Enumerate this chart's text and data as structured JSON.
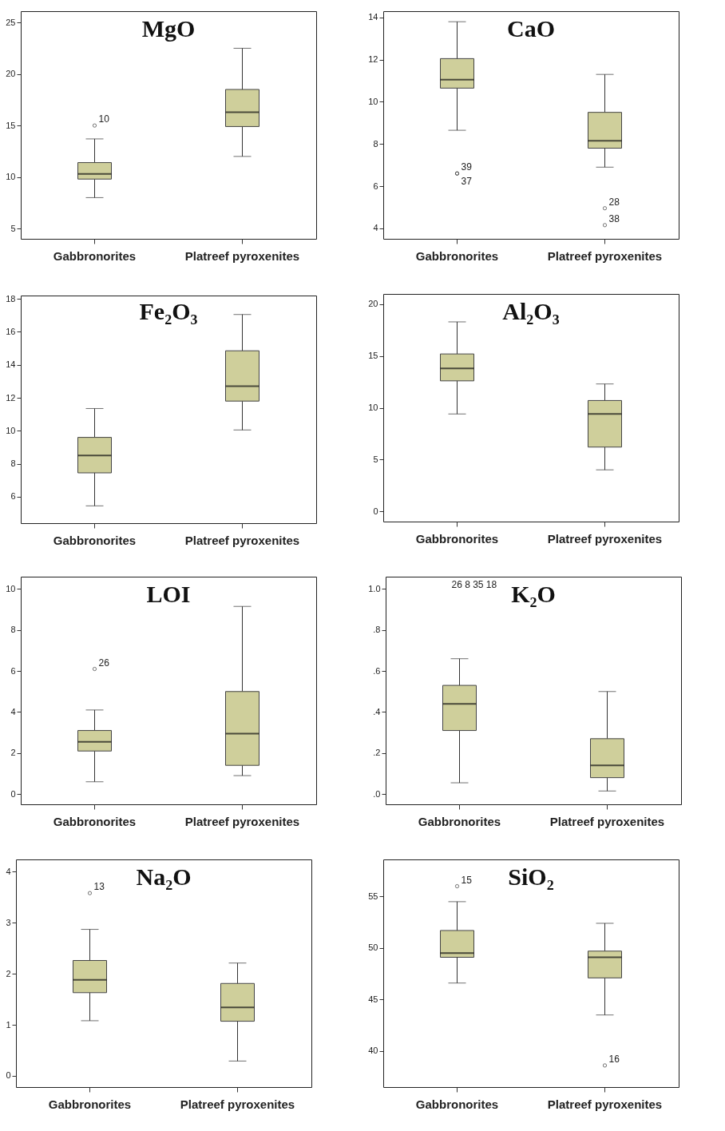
{
  "chart_data": [
    {
      "type": "box",
      "title": "MgO",
      "categories": [
        "Gabbronorites",
        "Platreef pyroxenites"
      ],
      "ylim": [
        4,
        26.1
      ],
      "yticks": [
        5,
        10,
        15,
        20,
        25
      ],
      "series": [
        {
          "color": "#cfcf9b",
          "boxes": [
            {
              "low": 8.0,
              "q1": 9.8,
              "median": 10.3,
              "q3": 11.4,
              "high": 13.7,
              "outliers": [
                15.0
              ]
            },
            {
              "low": 12.0,
              "q1": 14.9,
              "median": 16.3,
              "q3": 18.5,
              "high": 22.5
            }
          ]
        }
      ],
      "annotations": [
        "10"
      ]
    },
    {
      "type": "box",
      "title": "CaO",
      "categories": [
        "Gabbronorites",
        "Platreef pyroxenites"
      ],
      "ylim": [
        3.5,
        14.3
      ],
      "yticks": [
        4,
        6,
        8,
        10,
        12,
        14
      ],
      "series": [
        {
          "color": "#cfcf9b",
          "boxes": [
            {
              "low": 8.65,
              "q1": 10.65,
              "median": 11.05,
              "q3": 12.05,
              "high": 13.8,
              "outliers": [
                6.6,
                6.6
              ]
            },
            {
              "low": 6.9,
              "q1": 7.8,
              "median": 8.15,
              "q3": 9.5,
              "high": 11.3,
              "outliers": [
                4.95,
                4.15
              ]
            }
          ]
        }
      ],
      "annotations": [
        "39",
        "37",
        "28",
        "38"
      ]
    },
    {
      "type": "box",
      "title": "Fe₂O₃",
      "categories": [
        "Gabbronorites",
        "Platreef pyroxenites"
      ],
      "ylim": [
        4.4,
        18.2
      ],
      "yticks": [
        6,
        8,
        10,
        12,
        14,
        16,
        18
      ],
      "series": [
        {
          "color": "#cfcf9b",
          "boxes": [
            {
              "low": 5.45,
              "q1": 7.45,
              "median": 8.5,
              "q3": 9.6,
              "high": 11.35
            },
            {
              "low": 10.05,
              "q1": 11.8,
              "median": 12.7,
              "q3": 14.85,
              "high": 17.05
            }
          ]
        }
      ]
    },
    {
      "type": "box",
      "title": "Al₂O₃",
      "categories": [
        "Gabbronorites",
        "Platreef pyroxenites"
      ],
      "ylim": [
        -1,
        21
      ],
      "yticks": [
        0,
        5,
        10,
        15,
        20
      ],
      "series": [
        {
          "color": "#cfcf9b",
          "boxes": [
            {
              "low": 9.4,
              "q1": 12.6,
              "median": 13.8,
              "q3": 15.2,
              "high": 18.3
            },
            {
              "low": 4.0,
              "q1": 6.2,
              "median": 9.4,
              "q3": 10.7,
              "high": 12.3
            }
          ]
        }
      ]
    },
    {
      "type": "box",
      "title": "LOI",
      "categories": [
        "Gabbronorites",
        "Platreef pyroxenites"
      ],
      "ylim": [
        -0.5,
        10.6
      ],
      "yticks": [
        0,
        2,
        4,
        6,
        8,
        10
      ],
      "series": [
        {
          "color": "#cfcf9b",
          "boxes": [
            {
              "low": 0.6,
              "q1": 2.1,
              "median": 2.55,
              "q3": 3.1,
              "high": 4.1,
              "outliers": [
                6.1
              ]
            },
            {
              "low": 0.9,
              "q1": 1.4,
              "median": 2.95,
              "q3": 5.0,
              "high": 9.15
            }
          ]
        }
      ],
      "annotations": [
        "26"
      ]
    },
    {
      "type": "box",
      "title": "K₂O",
      "categories": [
        "Gabbronorites",
        "Platreef pyroxenites"
      ],
      "ylim": [
        -0.05,
        1.06
      ],
      "yticks": [
        {
          "value": 0,
          "label": ".0"
        },
        {
          "value": 0.2,
          "label": ".2"
        },
        {
          "value": 0.4,
          "label": ".4"
        },
        {
          "value": 0.6,
          "label": ".6"
        },
        {
          "value": 0.8,
          "label": ".8"
        },
        {
          "value": 1.0,
          "label": "1.0"
        }
      ],
      "series": [
        {
          "color": "#cfcf9b",
          "boxes": [
            {
              "low": 0.055,
              "q1": 0.31,
              "median": 0.44,
              "q3": 0.53,
              "high": 0.66
            },
            {
              "low": 0.015,
              "q1": 0.08,
              "median": 0.14,
              "q3": 0.27,
              "high": 0.5
            }
          ]
        }
      ],
      "annotations": [
        "26 8 35 18"
      ]
    },
    {
      "type": "box",
      "title": "Na₂O",
      "categories": [
        "Gabbronorites",
        "Platreef pyroxenites"
      ],
      "ylim": [
        -0.22,
        4.24
      ],
      "yticks": [
        0,
        1,
        2,
        3,
        4
      ],
      "series": [
        {
          "color": "#cfcf9b",
          "boxes": [
            {
              "low": 1.08,
              "q1": 1.63,
              "median": 1.88,
              "q3": 2.26,
              "high": 2.87,
              "outliers": [
                3.58
              ]
            },
            {
              "low": 0.29,
              "q1": 1.07,
              "median": 1.34,
              "q3": 1.81,
              "high": 2.21
            }
          ]
        }
      ],
      "annotations": [
        "13"
      ]
    },
    {
      "type": "box",
      "title": "SiO₂",
      "categories": [
        "Gabbronorites",
        "Platreef pyroxenites"
      ],
      "ylim": [
        36.5,
        58.6
      ],
      "yticks": [
        40,
        45,
        50,
        55
      ],
      "series": [
        {
          "color": "#cfcf9b",
          "boxes": [
            {
              "low": 46.6,
              "q1": 49.1,
              "median": 49.5,
              "q3": 51.7,
              "high": 54.5,
              "outliers": [
                56.0
              ]
            },
            {
              "low": 43.5,
              "q1": 47.1,
              "median": 49.1,
              "q3": 49.7,
              "high": 52.4,
              "outliers": [
                38.6
              ]
            }
          ]
        }
      ],
      "annotations": [
        "15",
        "16"
      ]
    }
  ]
}
